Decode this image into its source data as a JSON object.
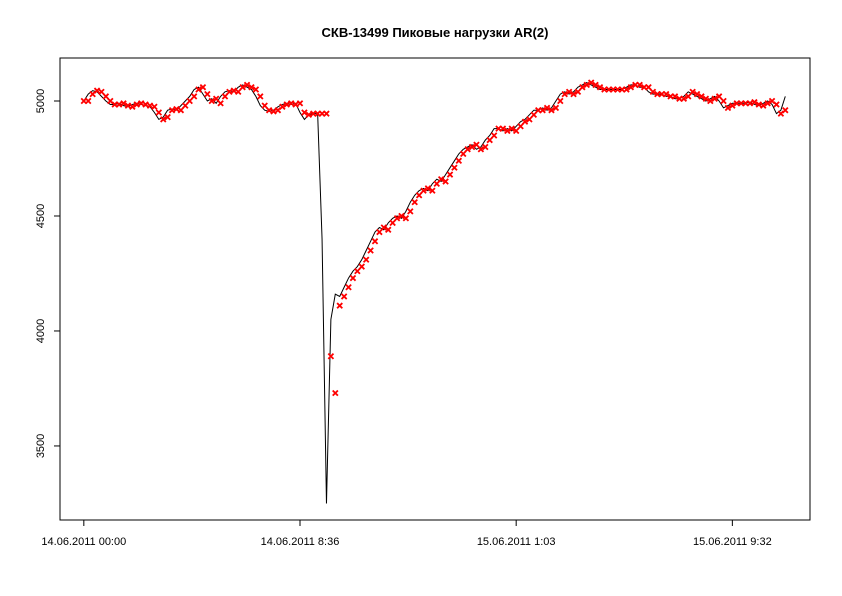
{
  "chart_data": {
    "type": "line",
    "title": "СКВ-13499 Пиковые нагрузки AR(2)",
    "xlim": [
      -5.4,
      164.6
    ],
    "xticks": [
      {
        "value": 0,
        "label": "14.06.2011 00:00"
      },
      {
        "value": 49,
        "label": "14.06.2011 8:36"
      },
      {
        "value": 98,
        "label": "15.06.2011 1:03"
      },
      {
        "value": 147,
        "label": "15.06.2011 9:32"
      }
    ],
    "ylim": [
      3178,
      5187
    ],
    "yticks": [
      3500,
      4000,
      4500,
      5000
    ],
    "series": [
      {
        "style": "line",
        "color": "#000000",
        "values": [
          5000,
          5030,
          5045,
          5040,
          5020,
          5000,
          4985,
          4985,
          4990,
          4980,
          4975,
          4985,
          4990,
          4985,
          4980,
          4975,
          4950,
          4920,
          4930,
          4960,
          4965,
          4960,
          4980,
          5000,
          5020,
          5050,
          5060,
          5030,
          5000,
          5010,
          4990,
          5020,
          5040,
          5045,
          5040,
          5060,
          5070,
          5060,
          5050,
          5020,
          4980,
          4960,
          4955,
          4960,
          4975,
          4985,
          4990,
          4985,
          4990,
          4950,
          4920,
          4940,
          4945,
          4945,
          4400,
          3250,
          4050,
          4160,
          4150,
          4190,
          4230,
          4260,
          4280,
          4310,
          4350,
          4390,
          4430,
          4450,
          4440,
          4470,
          4490,
          4500,
          4490,
          4520,
          4560,
          4590,
          4610,
          4620,
          4610,
          4640,
          4660,
          4650,
          4680,
          4710,
          4740,
          4770,
          4790,
          4800,
          4810,
          4790,
          4800,
          4830,
          4850,
          4880,
          4880,
          4870,
          4880,
          4870,
          4890,
          4910,
          4920,
          4940,
          4960,
          4960,
          4970,
          4960,
          4970,
          5000,
          5030,
          5040,
          5030,
          5040,
          5060,
          5070,
          5080,
          5070,
          5060,
          5050,
          5050,
          5050,
          5050,
          5050,
          5050,
          5060,
          5070,
          5070,
          5060,
          5060,
          5040,
          5030,
          5030,
          5030,
          5020,
          5020,
          5010,
          5010,
          5020,
          5040,
          5030,
          5020,
          5010,
          5000,
          5010,
          5020,
          5000,
          4970,
          4980,
          4990,
          4990,
          4990,
          4990,
          4995,
          4985,
          4980,
          4990,
          5000,
          4985,
          4945,
          4960,
          5020
        ]
      },
      {
        "style": "points",
        "marker": "x",
        "color": "#ff0000",
        "values": [
          5000,
          5000,
          5030,
          5045,
          5040,
          5020,
          5000,
          4985,
          4985,
          4990,
          4980,
          4975,
          4985,
          4990,
          4985,
          4980,
          4975,
          4950,
          4920,
          4930,
          4960,
          4965,
          4960,
          4980,
          5000,
          5020,
          5050,
          5060,
          5030,
          5000,
          5010,
          4990,
          5020,
          5040,
          5045,
          5040,
          5060,
          5070,
          5060,
          5050,
          5020,
          4980,
          4960,
          4955,
          4960,
          4975,
          4985,
          4990,
          4985,
          4990,
          4950,
          4940,
          4945,
          4945,
          4945,
          4945,
          3890,
          3730,
          4110,
          4150,
          4190,
          4230,
          4260,
          4280,
          4310,
          4350,
          4390,
          4430,
          4450,
          4440,
          4470,
          4490,
          4500,
          4490,
          4520,
          4560,
          4590,
          4610,
          4620,
          4610,
          4640,
          4660,
          4650,
          4680,
          4710,
          4740,
          4770,
          4790,
          4800,
          4810,
          4790,
          4800,
          4830,
          4850,
          4880,
          4880,
          4870,
          4880,
          4870,
          4890,
          4910,
          4920,
          4940,
          4960,
          4960,
          4970,
          4960,
          4970,
          5000,
          5030,
          5040,
          5030,
          5040,
          5060,
          5070,
          5080,
          5070,
          5060,
          5050,
          5050,
          5050,
          5050,
          5050,
          5050,
          5060,
          5070,
          5070,
          5060,
          5060,
          5040,
          5030,
          5030,
          5030,
          5020,
          5020,
          5010,
          5010,
          5020,
          5040,
          5030,
          5020,
          5010,
          5000,
          5010,
          5020,
          5000,
          4970,
          4980,
          4990,
          4990,
          4990,
          4990,
          4995,
          4985,
          4980,
          4990,
          5000,
          4985,
          4945,
          4960
        ]
      }
    ]
  }
}
